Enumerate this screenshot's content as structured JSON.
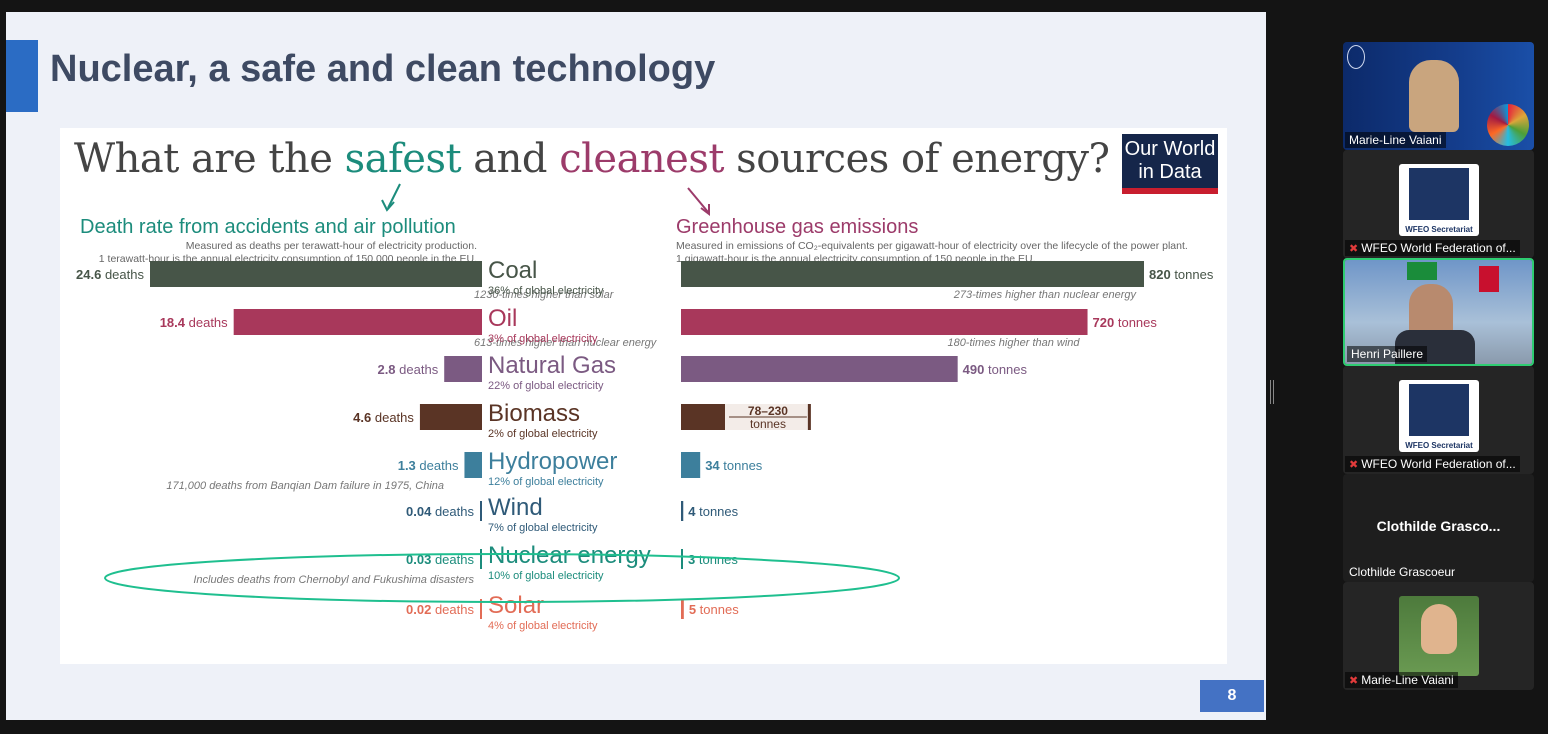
{
  "slide": {
    "title": "Nuclear, a safe and clean technology",
    "number": "8"
  },
  "infographic": {
    "title_part1": "What are the ",
    "title_safe": "safest",
    "title_part2": " and ",
    "title_clean": "cleanest",
    "title_part3": " sources of energy?",
    "brand_line1": "Our World",
    "brand_line2": "in Data",
    "left_heading": "Death rate from accidents and air pollution",
    "left_sub1": "Measured as deaths per terawatt-hour of electricity production.",
    "left_sub2": "1 terawatt-hour is the annual electricity consumption of 150,000 people in the EU.",
    "right_heading": "Greenhouse gas emissions",
    "right_sub1": "Measured in emissions of CO₂-equivalents per gigawatt-hour of electricity over the lifecycle of the power plant.",
    "right_sub2": "1 gigawatt-hour is the annual electricity consumption of 150 people in the EU.",
    "colors": {
      "safe": "#1c8c7c",
      "clean": "#9c3b6a",
      "highlight_ellipse": "#1fbf8f"
    }
  },
  "chart_data": {
    "type": "bar",
    "categories": [
      "Coal",
      "Oil",
      "Natural Gas",
      "Biomass",
      "Hydropower",
      "Wind",
      "Nuclear energy",
      "Solar"
    ],
    "shares": [
      "36% of global electricity",
      "3% of global electricity",
      "22% of global electricity",
      "2% of global electricity",
      "12% of global electricity",
      "7% of global electricity",
      "10% of global electricity",
      "4% of global electricity"
    ],
    "colors": [
      "#475548",
      "#a8385b",
      "#7b5a82",
      "#5a3425",
      "#3d7f9c",
      "#2f5a78",
      "#1c8c7c",
      "#e26c56"
    ],
    "death_rates": [
      24.6,
      18.4,
      2.8,
      4.6,
      1.3,
      0.04,
      0.03,
      0.02
    ],
    "death_value_labels": [
      "24.6",
      "18.4",
      "2.8",
      "4.6",
      "1.3",
      "0.04",
      "0.03",
      "0.02"
    ],
    "death_unit": "deaths",
    "death_notes": [
      "1230-times higher than solar",
      "613-times higher than nuclear energy",
      "",
      "",
      "171,000 deaths from Banqian Dam failure in 1975, China",
      "",
      "Includes deaths from Chernobyl and Fukushima disasters",
      ""
    ],
    "emissions": [
      820,
      720,
      490,
      78,
      34,
      4,
      3,
      5
    ],
    "emission_value_labels": [
      "820",
      "720",
      "490",
      "",
      "34",
      "4",
      "3",
      "5"
    ],
    "emission_unit": "tonnes",
    "biomass_range": [
      78,
      230
    ],
    "biomass_range_label": "78–230",
    "emission_notes": [
      "273-times higher than nuclear energy",
      "180-times higher than wind",
      "",
      "",
      "",
      "",
      "",
      ""
    ],
    "xlabel": "",
    "ylabel": ""
  },
  "participants": [
    {
      "name": "Marie-Line Vaiani",
      "muted": false,
      "type": "video"
    },
    {
      "name": "WFEO World Federation of...",
      "muted": true,
      "type": "logo",
      "logo_caption": "WFEO Secretariat"
    },
    {
      "name": "Henri Paillere",
      "muted": false,
      "type": "video",
      "speaking": true
    },
    {
      "name": "WFEO World Federation of...",
      "muted": true,
      "type": "logo",
      "logo_caption": "WFEO Secretariat"
    },
    {
      "name": "Clothilde Grascoeur",
      "muted": false,
      "type": "text",
      "display": "Clothilde  Grasco..."
    },
    {
      "name": "Marie-Line Vaiani",
      "muted": true,
      "type": "video"
    }
  ]
}
